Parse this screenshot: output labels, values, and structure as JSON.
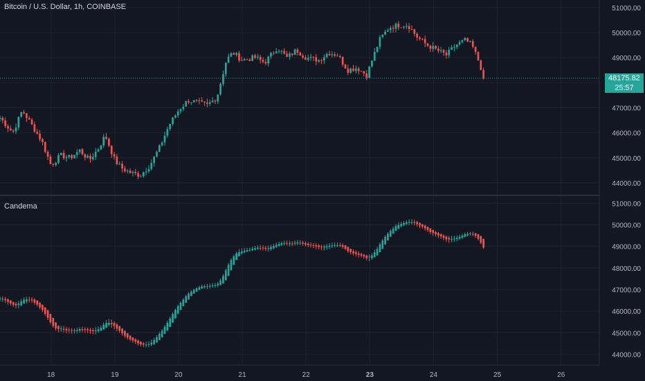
{
  "symbol_title": "Bitcoin / U.S. Dollar, 1h, COINBASE",
  "indicator_title": "Candema",
  "last_price": "48175.82",
  "countdown": "25:57",
  "colors": {
    "background": "#131722",
    "grid": "#1e222d",
    "up": "#26a69a",
    "down": "#ef5350",
    "axis_text": "#b2b5be",
    "last_price_line": "#26a69a"
  },
  "chart_data": [
    {
      "type": "candlestick",
      "title": "Bitcoin / U.S. Dollar, 1h, COINBASE",
      "y_ticks": [
        44000,
        45000,
        46000,
        47000,
        48000,
        49000,
        50000,
        51000
      ],
      "y_tick_labels": [
        "44000.00",
        "45000.00",
        "46000.00",
        "47000.00",
        "48000.00",
        "49000.00",
        "50000.00",
        "51000.00"
      ],
      "ylim": [
        43500,
        51300
      ],
      "x_ticks": [
        "18",
        "19",
        "20",
        "21",
        "22",
        "23",
        "24",
        "25",
        "26"
      ],
      "x_range_days": [
        17.2,
        26.6
      ],
      "last_price": 48175.82,
      "price_path": [
        {
          "day": 17.2,
          "price": 46600
        },
        {
          "day": 17.4,
          "price": 46000
        },
        {
          "day": 17.55,
          "price": 46900
        },
        {
          "day": 17.7,
          "price": 46300
        },
        {
          "day": 17.85,
          "price": 45700
        },
        {
          "day": 18.0,
          "price": 44700
        },
        {
          "day": 18.15,
          "price": 45100
        },
        {
          "day": 18.3,
          "price": 45000
        },
        {
          "day": 18.45,
          "price": 45300
        },
        {
          "day": 18.6,
          "price": 44900
        },
        {
          "day": 18.75,
          "price": 45400
        },
        {
          "day": 18.85,
          "price": 45900
        },
        {
          "day": 19.0,
          "price": 44900
        },
        {
          "day": 19.1,
          "price": 44600
        },
        {
          "day": 19.25,
          "price": 44400
        },
        {
          "day": 19.4,
          "price": 44300
        },
        {
          "day": 19.55,
          "price": 44700
        },
        {
          "day": 19.7,
          "price": 45400
        },
        {
          "day": 19.85,
          "price": 46300
        },
        {
          "day": 20.0,
          "price": 46900
        },
        {
          "day": 20.15,
          "price": 47300
        },
        {
          "day": 20.3,
          "price": 47200
        },
        {
          "day": 20.45,
          "price": 47100
        },
        {
          "day": 20.6,
          "price": 47400
        },
        {
          "day": 20.75,
          "price": 48900
        },
        {
          "day": 20.85,
          "price": 49200
        },
        {
          "day": 21.0,
          "price": 48900
        },
        {
          "day": 21.2,
          "price": 49000
        },
        {
          "day": 21.35,
          "price": 48800
        },
        {
          "day": 21.55,
          "price": 49400
        },
        {
          "day": 21.7,
          "price": 49000
        },
        {
          "day": 21.85,
          "price": 49300
        },
        {
          "day": 22.0,
          "price": 49000
        },
        {
          "day": 22.2,
          "price": 48900
        },
        {
          "day": 22.35,
          "price": 49200
        },
        {
          "day": 22.5,
          "price": 49100
        },
        {
          "day": 22.65,
          "price": 48500
        },
        {
          "day": 22.8,
          "price": 48600
        },
        {
          "day": 22.95,
          "price": 48300
        },
        {
          "day": 23.05,
          "price": 49000
        },
        {
          "day": 23.15,
          "price": 49700
        },
        {
          "day": 23.3,
          "price": 50200
        },
        {
          "day": 23.45,
          "price": 50300
        },
        {
          "day": 23.6,
          "price": 50300
        },
        {
          "day": 23.75,
          "price": 49800
        },
        {
          "day": 23.9,
          "price": 49500
        },
        {
          "day": 24.05,
          "price": 49300
        },
        {
          "day": 24.2,
          "price": 49100
        },
        {
          "day": 24.35,
          "price": 49500
        },
        {
          "day": 24.5,
          "price": 49700
        },
        {
          "day": 24.6,
          "price": 49500
        },
        {
          "day": 24.7,
          "price": 48900
        },
        {
          "day": 24.8,
          "price": 48175.82
        }
      ]
    },
    {
      "type": "candlestick",
      "title": "Candema",
      "y_ticks": [
        44000,
        45000,
        46000,
        47000,
        48000,
        49000,
        50000,
        51000
      ],
      "y_tick_labels": [
        "44000.00",
        "45000.00",
        "46000.00",
        "47000.00",
        "48000.00",
        "49000.00",
        "50000.00",
        "51000.00"
      ],
      "ylim": [
        43500,
        51300
      ],
      "x_ticks": [
        "18",
        "19",
        "20",
        "21",
        "22",
        "23",
        "24",
        "25",
        "26"
      ],
      "x_range_days": [
        17.2,
        26.6
      ],
      "smoothing": "EMA of the price panel candles"
    }
  ]
}
